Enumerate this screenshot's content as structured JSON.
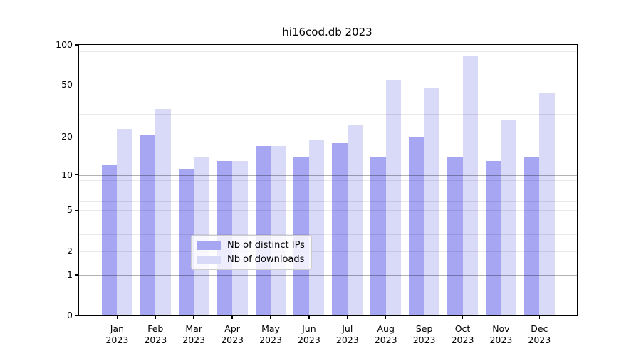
{
  "title": "hi16cod.db 2023",
  "chart_data": {
    "type": "bar",
    "title": "hi16cod.db 2023",
    "categories": [
      "Jan",
      "Feb",
      "Mar",
      "Apr",
      "May",
      "Jun",
      "Jul",
      "Aug",
      "Sep",
      "Oct",
      "Nov",
      "Dec"
    ],
    "category_year": "2023",
    "series": [
      {
        "name": "Nb of distinct IPs",
        "color": "#a6a6f2",
        "values": [
          12,
          21,
          11,
          13,
          17,
          14,
          18,
          14,
          20,
          14,
          13,
          14
        ]
      },
      {
        "name": "Nb of downloads",
        "color": "#d9d9f8",
        "values": [
          23,
          33,
          14,
          13,
          17,
          19,
          25,
          54,
          48,
          83,
          27,
          44
        ]
      }
    ],
    "yscale": "log1p",
    "ylim": [
      0,
      100
    ],
    "y_ticks": [
      0,
      1,
      2,
      5,
      10,
      20,
      50,
      100
    ],
    "y_gridlines_minor": [
      2,
      3,
      4,
      5,
      6,
      7,
      8,
      9,
      20,
      30,
      40,
      50,
      60,
      70,
      80,
      90
    ],
    "y_gridlines_major": [
      1,
      10
    ],
    "grid": true,
    "legend_position": "lower center",
    "xlabel": "",
    "ylabel": ""
  },
  "colors": {
    "bar_distinct_ips": "#a6a6f2",
    "bar_downloads": "#d9d9f8",
    "grid_minor": "rgba(0,0,0,0.085)",
    "grid_major": "rgba(0,0,0,0.3)",
    "spine": "#000000",
    "legend_border": "#cccccc",
    "legend_bg": "rgba(255,255,255,0.8)"
  }
}
